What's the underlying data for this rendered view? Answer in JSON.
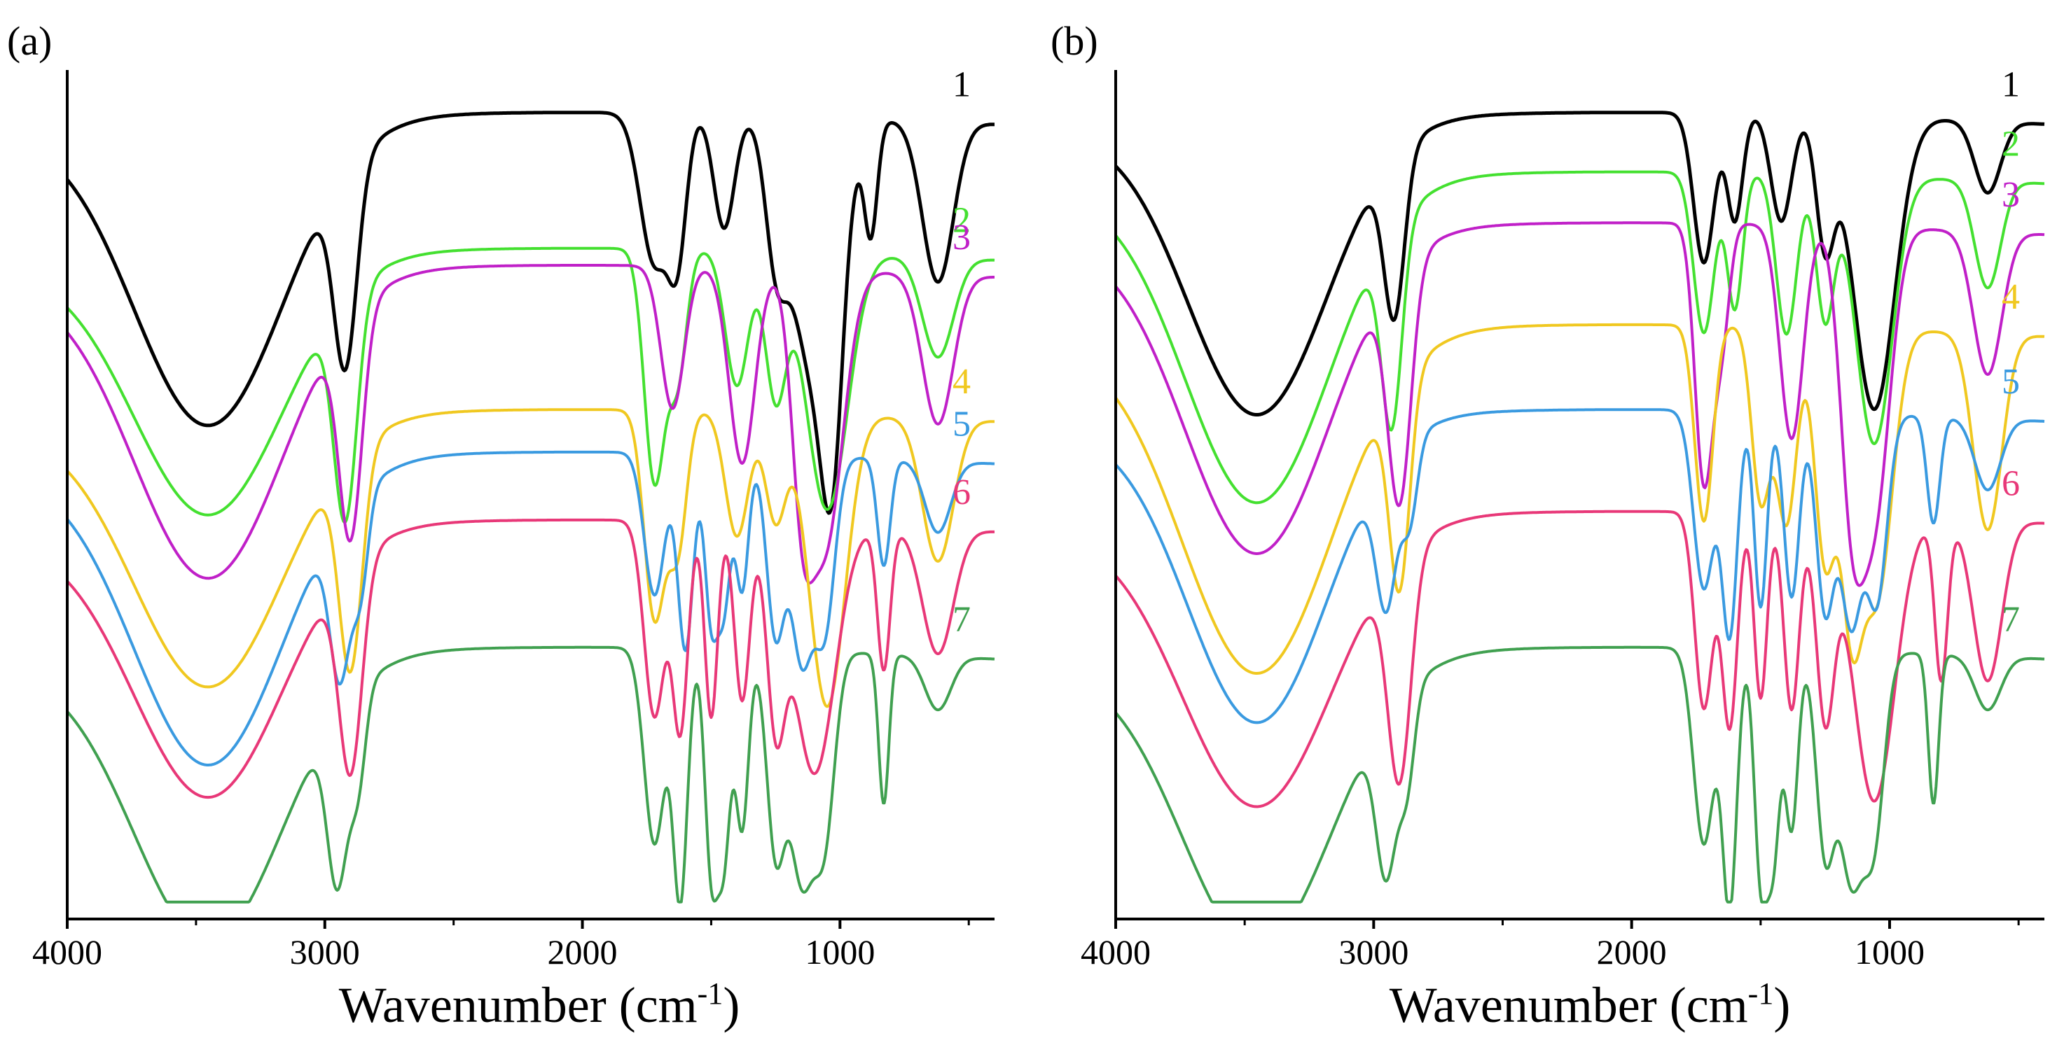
{
  "chart_data": [
    {
      "panel": "(a)",
      "type": "line",
      "title": "",
      "xlabel": "Wavenumber (cm",
      "xlabel_sup": "-1",
      "xlabel_close": ")",
      "ylabel": "",
      "y_ticks_shown": false,
      "xlim": [
        4000,
        400
      ],
      "xticks": [
        4000,
        3000,
        2000,
        1000
      ],
      "xtick_labels": [
        "4000",
        "3000",
        "2000",
        "1000"
      ],
      "series": [
        {
          "name": "1",
          "color": "#000000",
          "offset": 0.93,
          "depth": 0.85,
          "peaks": [
            [
              3450,
              0.85,
              290
            ],
            [
              2920,
              0.55,
              45
            ],
            [
              1720,
              0.42,
              55
            ],
            [
              1630,
              0.35,
              35
            ],
            [
              1450,
              0.32,
              40
            ],
            [
              1250,
              0.3,
              40
            ],
            [
              1100,
              0.72,
              90
            ],
            [
              1030,
              0.55,
              40
            ],
            [
              880,
              0.3,
              25
            ],
            [
              620,
              0.45,
              60
            ]
          ]
        },
        {
          "name": "2",
          "color": "#44e030",
          "offset": 0.77,
          "depth": 0.85,
          "peaks": [
            [
              3450,
              0.72,
              290
            ],
            [
              2920,
              0.62,
              45
            ],
            [
              1720,
              0.65,
              40
            ],
            [
              1630,
              0.35,
              35
            ],
            [
              1400,
              0.38,
              45
            ],
            [
              1250,
              0.4,
              40
            ],
            [
              1050,
              0.72,
              80
            ],
            [
              620,
              0.28,
              60
            ]
          ]
        },
        {
          "name": "3",
          "color": "#c020c8",
          "offset": 0.75,
          "depth": 0.85,
          "peaks": [
            [
              3450,
              0.85,
              290
            ],
            [
              2900,
              0.62,
              45
            ],
            [
              1650,
              0.4,
              45
            ],
            [
              1380,
              0.55,
              50
            ],
            [
              1150,
              0.45,
              40
            ],
            [
              1060,
              0.78,
              70
            ],
            [
              620,
              0.42,
              60
            ]
          ]
        },
        {
          "name": "4",
          "color": "#f0c820",
          "offset": 0.58,
          "depth": 0.85,
          "peaks": [
            [
              3450,
              0.75,
              290
            ],
            [
              2900,
              0.6,
              45
            ],
            [
              1720,
              0.58,
              40
            ],
            [
              1630,
              0.38,
              35
            ],
            [
              1400,
              0.35,
              45
            ],
            [
              1250,
              0.3,
              40
            ],
            [
              1050,
              0.82,
              70
            ],
            [
              620,
              0.4,
              60
            ]
          ]
        },
        {
          "name": "5",
          "color": "#3a9ae0",
          "offset": 0.53,
          "depth": 0.85,
          "peaks": [
            [
              3450,
              0.85,
              290
            ],
            [
              2940,
              0.45,
              40
            ],
            [
              2860,
              0.25,
              30
            ],
            [
              1720,
              0.4,
              40
            ],
            [
              1600,
              0.55,
              30
            ],
            [
              1500,
              0.45,
              25
            ],
            [
              1450,
              0.4,
              25
            ],
            [
              1380,
              0.38,
              25
            ],
            [
              1250,
              0.5,
              35
            ],
            [
              1150,
              0.55,
              40
            ],
            [
              1060,
              0.48,
              40
            ],
            [
              830,
              0.3,
              25
            ],
            [
              620,
              0.2,
              50
            ]
          ]
        },
        {
          "name": "6",
          "color": "#e83878",
          "offset": 0.45,
          "depth": 0.85,
          "peaks": [
            [
              3450,
              0.75,
              290
            ],
            [
              2900,
              0.58,
              45
            ],
            [
              1720,
              0.55,
              40
            ],
            [
              1620,
              0.58,
              30
            ],
            [
              1500,
              0.55,
              25
            ],
            [
              1380,
              0.5,
              30
            ],
            [
              1250,
              0.5,
              35
            ],
            [
              1100,
              0.7,
              80
            ],
            [
              830,
              0.4,
              25
            ],
            [
              620,
              0.35,
              60
            ]
          ]
        },
        {
          "name": "7",
          "color": "#40a050",
          "offset": 0.3,
          "depth": 0.85,
          "peaks": [
            [
              3450,
              0.8,
              290
            ],
            [
              2950,
              0.48,
              40
            ],
            [
              2870,
              0.25,
              30
            ],
            [
              1720,
              0.55,
              40
            ],
            [
              1620,
              0.7,
              28
            ],
            [
              1500,
              0.6,
              25
            ],
            [
              1450,
              0.55,
              25
            ],
            [
              1380,
              0.5,
              25
            ],
            [
              1250,
              0.55,
              35
            ],
            [
              1150,
              0.62,
              45
            ],
            [
              1060,
              0.5,
              40
            ],
            [
              830,
              0.42,
              20
            ],
            [
              620,
              0.15,
              50
            ]
          ]
        }
      ]
    },
    {
      "panel": "(b)",
      "type": "line",
      "title": "",
      "xlabel": "Wavenumber (cm",
      "xlabel_sup": "-1",
      "xlabel_close": ")",
      "ylabel": "",
      "y_ticks_shown": false,
      "xlim": [
        4000,
        400
      ],
      "xticks": [
        4000,
        3000,
        2000,
        1000
      ],
      "xtick_labels": [
        "4000",
        "3000",
        "2000",
        "1000"
      ],
      "series": [
        {
          "name": "1",
          "color": "#000000",
          "offset": 0.93,
          "depth": 0.85,
          "peaks": [
            [
              3450,
              0.82,
              270
            ],
            [
              2920,
              0.45,
              40
            ],
            [
              1720,
              0.42,
              40
            ],
            [
              1600,
              0.3,
              30
            ],
            [
              1420,
              0.3,
              40
            ],
            [
              1250,
              0.35,
              35
            ],
            [
              1060,
              0.82,
              80
            ],
            [
              620,
              0.2,
              50
            ]
          ]
        },
        {
          "name": "2",
          "color": "#44e030",
          "offset": 0.86,
          "depth": 0.85,
          "peaks": [
            [
              3450,
              0.9,
              280
            ],
            [
              2930,
              0.55,
              40
            ],
            [
              1720,
              0.45,
              40
            ],
            [
              1600,
              0.38,
              30
            ],
            [
              1400,
              0.45,
              40
            ],
            [
              1250,
              0.4,
              35
            ],
            [
              1060,
              0.75,
              70
            ],
            [
              620,
              0.3,
              50
            ]
          ]
        },
        {
          "name": "3",
          "color": "#c020c8",
          "offset": 0.8,
          "depth": 0.85,
          "peaks": [
            [
              3450,
              0.9,
              280
            ],
            [
              2900,
              0.65,
              45
            ],
            [
              1720,
              0.72,
              35
            ],
            [
              1650,
              0.3,
              30
            ],
            [
              1380,
              0.6,
              45
            ],
            [
              1150,
              0.65,
              45
            ],
            [
              1060,
              0.8,
              60
            ],
            [
              620,
              0.4,
              55
            ]
          ]
        },
        {
          "name": "4",
          "color": "#f0c820",
          "offset": 0.68,
          "depth": 0.85,
          "peaks": [
            [
              3450,
              0.95,
              290
            ],
            [
              2900,
              0.58,
              40
            ],
            [
              1720,
              0.55,
              35
            ],
            [
              1500,
              0.48,
              35
            ],
            [
              1400,
              0.55,
              40
            ],
            [
              1250,
              0.65,
              40
            ],
            [
              1150,
              0.7,
              40
            ],
            [
              1050,
              0.75,
              60
            ],
            [
              620,
              0.55,
              55
            ]
          ]
        },
        {
          "name": "5",
          "color": "#3a9ae0",
          "offset": 0.58,
          "depth": 0.85,
          "peaks": [
            [
              3450,
              0.85,
              270
            ],
            [
              2950,
              0.4,
              40
            ],
            [
              2860,
              0.22,
              30
            ],
            [
              1720,
              0.5,
              40
            ],
            [
              1620,
              0.62,
              30
            ],
            [
              1500,
              0.55,
              25
            ],
            [
              1380,
              0.52,
              30
            ],
            [
              1250,
              0.55,
              35
            ],
            [
              1150,
              0.58,
              40
            ],
            [
              1050,
              0.52,
              40
            ],
            [
              830,
              0.3,
              25
            ],
            [
              620,
              0.2,
              50
            ]
          ]
        },
        {
          "name": "6",
          "color": "#e83878",
          "offset": 0.46,
          "depth": 0.85,
          "peaks": [
            [
              3450,
              0.8,
              290
            ],
            [
              2900,
              0.62,
              45
            ],
            [
              1720,
              0.55,
              35
            ],
            [
              1620,
              0.6,
              30
            ],
            [
              1500,
              0.52,
              25
            ],
            [
              1380,
              0.55,
              30
            ],
            [
              1250,
              0.55,
              35
            ],
            [
              1060,
              0.8,
              80
            ],
            [
              800,
              0.45,
              25
            ],
            [
              620,
              0.45,
              55
            ]
          ]
        },
        {
          "name": "7",
          "color": "#40a050",
          "offset": 0.3,
          "depth": 0.85,
          "peaks": [
            [
              3450,
              0.82,
              290
            ],
            [
              2950,
              0.45,
              40
            ],
            [
              2870,
              0.25,
              30
            ],
            [
              1720,
              0.55,
              40
            ],
            [
              1620,
              0.72,
              28
            ],
            [
              1500,
              0.62,
              25
            ],
            [
              1450,
              0.55,
              25
            ],
            [
              1380,
              0.5,
              25
            ],
            [
              1250,
              0.55,
              35
            ],
            [
              1150,
              0.62,
              45
            ],
            [
              1060,
              0.5,
              40
            ],
            [
              830,
              0.42,
              20
            ],
            [
              620,
              0.15,
              50
            ]
          ]
        }
      ]
    }
  ]
}
